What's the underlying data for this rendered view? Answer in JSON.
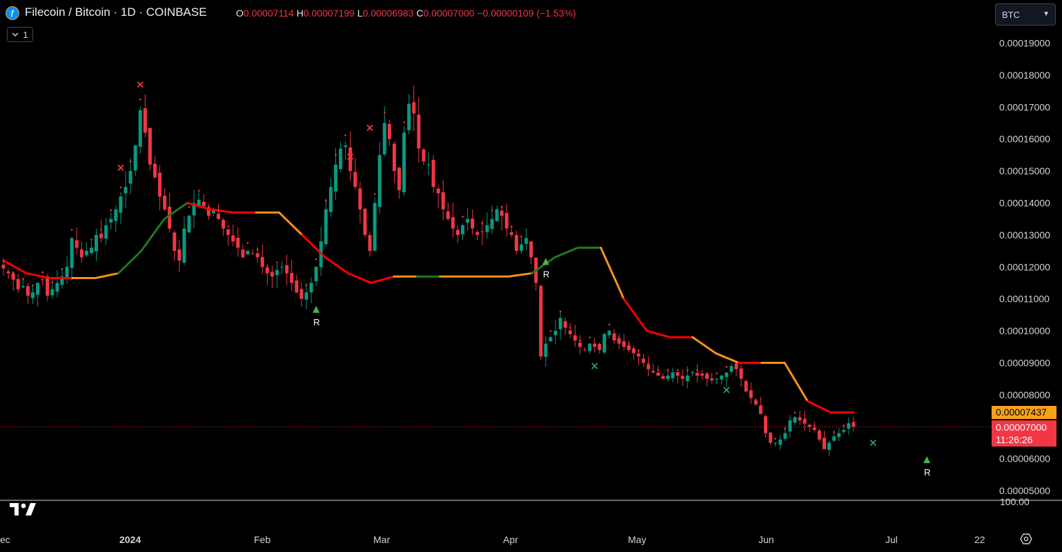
{
  "header": {
    "symbol_icon": "filecoin-icon",
    "symbol_icon_glyph": "ƒ",
    "title": "Filecoin / Bitcoin · 1D · COINBASE",
    "ohlc": {
      "o_key": "O",
      "o_val": "0.00007114",
      "h_key": "H",
      "h_val": "0.00007199",
      "l_key": "L",
      "l_val": "0.00006983",
      "c_key": "C",
      "c_val": "0.00007000",
      "change": "−0.00000109 (−1.53%)"
    },
    "collapse_label": "1",
    "collapse_icon": "chevron-down-icon"
  },
  "currency_select": {
    "value": "BTC"
  },
  "price_tags": {
    "orange": "0.00007437",
    "red_price": "0.00007000",
    "red_countdown": "11:26:26"
  },
  "volume_label": "100.00",
  "colors": {
    "up": "#089981",
    "down": "#f23645",
    "line_red": "#ff0000",
    "line_green": "#1e7a1e",
    "line_orange": "#f7931a",
    "background": "#000000"
  },
  "chart_data": {
    "type": "candlestick",
    "ylim": [
      4.7e-05,
      0.000197
    ],
    "y_ticks": [
      "0.00019000",
      "0.00018000",
      "0.00017000",
      "0.00016000",
      "0.00015000",
      "0.00014000",
      "0.00013000",
      "0.00012000",
      "0.00011000",
      "0.00010000",
      "0.00009000",
      "0.00008000",
      "0.00006000",
      "0.00005000"
    ],
    "x_ticks": [
      {
        "label": "ec",
        "bold": false
      },
      {
        "label": "2024",
        "bold": true
      },
      {
        "label": "Feb",
        "bold": false
      },
      {
        "label": "Mar",
        "bold": false
      },
      {
        "label": "Apr",
        "bold": false
      },
      {
        "label": "May",
        "bold": false
      },
      {
        "label": "Jun",
        "bold": false
      },
      {
        "label": "Jul",
        "bold": false
      },
      {
        "label": "22",
        "bold": false
      }
    ],
    "closes": [
      0.0001195,
      0.000118,
      0.000116,
      0.000113,
      0.000114,
      0.000111,
      0.000112,
      0.000115,
      0.000116,
      0.000111,
      0.000113,
      0.000115,
      0.000117,
      0.00012,
      0.000129,
      0.000126,
      0.000123,
      0.000125,
      0.000126,
      0.00013,
      0.000129,
      0.000133,
      0.000135,
      0.000138,
      0.000142,
      0.000145,
      0.00015,
      0.000158,
      0.000169,
      0.000162,
      0.000152,
      0.000148,
      0.000142,
      0.000138,
      0.000132,
      0.000125,
      0.000122,
      0.000132,
      0.000136,
      0.00014,
      0.000141,
      0.000139,
      0.000136,
      0.000138,
      0.000135,
      0.000132,
      0.00013,
      0.000128,
      0.000126,
      0.000123,
      0.000125,
      0.000124,
      0.000123,
      0.00012,
      0.000118,
      0.000117,
      0.000119,
      0.00012,
      0.000118,
      0.000115,
      0.000112,
      0.00011,
      0.000112,
      0.000115,
      0.00012,
      0.000128,
      0.000138,
      0.000145,
      0.000152,
      0.000157,
      0.000158,
      0.00015,
      0.000145,
      0.000138,
      0.00013,
      0.000125,
      0.00014,
      0.000155,
      0.000165,
      0.00016,
      0.00015,
      0.000144,
      0.000162,
      0.000171,
      0.000168,
      0.000157,
      0.000153,
      0.000152,
      0.000145,
      0.000143,
      0.000138,
      0.000135,
      0.000132,
      0.00013,
      0.000133,
      0.000135,
      0.000132,
      0.00013,
      0.000131,
      0.000133,
      0.000135,
      0.000138,
      0.000136,
      0.000132,
      0.00013,
      0.000125,
      0.000127,
      0.000129,
      0.000123,
      0.000115,
      9.2e-05,
      9.6e-05,
      9.8e-05,
      0.0001,
      0.000104,
      0.000101,
      9.9e-05,
      9.7e-05,
      9.5e-05,
      9.4e-05,
      9.6e-05,
      9.5e-05,
      9.4e-05,
      9.9e-05,
      0.0001,
      9.7e-05,
      9.6e-05,
      9.5e-05,
      9.4e-05,
      9.3e-05,
      9.2e-05,
      9e-05,
      8.8e-05,
      8.7e-05,
      8.6e-05,
      8.5e-05,
      8.6e-05,
      8.7e-05,
      8.6e-05,
      8.5e-05,
      8.6e-05,
      8.7e-05,
      8.6e-05,
      8.6e-05,
      8.5e-05,
      8.45e-05,
      8.5e-05,
      8.6e-05,
      8.7e-05,
      8.9e-05,
      8.8e-05,
      8.5e-05,
      8.1e-05,
      7.9e-05,
      7.7e-05,
      7.4e-05,
      6.8e-05,
      6.5e-05,
      6.5e-05,
      6.6e-05,
      6.8e-05,
      7.2e-05,
      7.3e-05,
      7.2e-05,
      7.1e-05,
      7e-05,
      6.9e-05,
      6.6e-05,
      6.3e-05,
      6.5e-05,
      6.7e-05,
      6.8e-05,
      6.9e-05,
      7.11e-05,
      7e-05
    ],
    "trail_line": {
      "values": [
        0.000122,
        0.000118,
        0.0001165,
        0.0001165,
        0.0001165,
        0.000118,
        0.000125,
        0.000135,
        0.00014,
        0.000138,
        0.000137,
        0.000137,
        0.000137,
        0.00013,
        0.000123,
        0.000118,
        0.000115,
        0.000117,
        0.000117,
        0.000117,
        0.000117,
        0.000117,
        0.000117,
        0.000118,
        0.000123,
        0.000126,
        0.000126,
        0.00011,
        0.0001,
        9.8e-05,
        9.8e-05,
        9.3e-05,
        9e-05,
        9e-05,
        9e-05,
        7.8e-05,
        7.45e-05,
        7.45e-05
      ],
      "color_runs": [
        "red",
        "red",
        "red",
        "orange",
        "orange",
        "green",
        "green",
        "green",
        "red",
        "red",
        "red",
        "orange",
        "orange",
        "red",
        "red",
        "red",
        "red",
        "orange",
        "green",
        "orange",
        "orange",
        "orange",
        "orange",
        "green",
        "green",
        "green",
        "orange",
        "red",
        "red",
        "red",
        "orange",
        "orange",
        "red",
        "orange",
        "orange",
        "red",
        "red",
        "orange"
      ]
    },
    "markers": [
      {
        "type": "cross",
        "color": "red",
        "idx": 24,
        "value": 0.000151
      },
      {
        "type": "cross",
        "color": "red",
        "idx": 28,
        "value": 0.000177
      },
      {
        "type": "triangle-up",
        "color": "green",
        "idx": 64,
        "value": 0.0001065,
        "label": "R"
      },
      {
        "type": "cross",
        "color": "red",
        "idx": 71,
        "value": 0.0001545
      },
      {
        "type": "cross",
        "color": "red",
        "idx": 75,
        "value": 0.0001635
      },
      {
        "type": "triangle-up",
        "color": "green",
        "idx": 111,
        "value": 0.0001215,
        "label": "R"
      },
      {
        "type": "cross",
        "color": "green",
        "idx": 121,
        "value": 8.9e-05
      },
      {
        "type": "cross",
        "color": "green",
        "idx": 148,
        "value": 8.15e-05
      },
      {
        "type": "cross",
        "color": "green",
        "idx": 178,
        "value": 6.5e-05
      },
      {
        "type": "triangle-up",
        "color": "green",
        "idx": 189,
        "value": 5.95e-05,
        "label": "R"
      }
    ],
    "current_price": 7e-05,
    "orange_level": 7.44e-05,
    "legend": "top-left"
  }
}
